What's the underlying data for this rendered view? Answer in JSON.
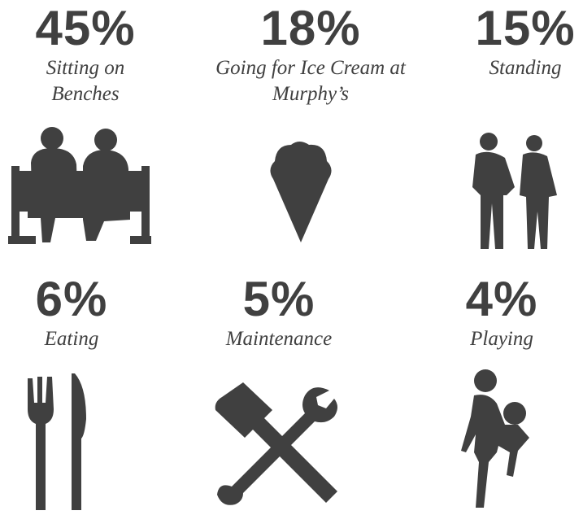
{
  "items": [
    {
      "percent": "45%",
      "label": "Sitting on Benches"
    },
    {
      "percent": "18%",
      "label": "Going for Ice Cream at Murphy’s"
    },
    {
      "percent": "15%",
      "label": "Standing"
    },
    {
      "percent": "6%",
      "label": "Eating"
    },
    {
      "percent": "5%",
      "label": "Maintenance"
    },
    {
      "percent": "4%",
      "label": "Playing"
    }
  ]
}
